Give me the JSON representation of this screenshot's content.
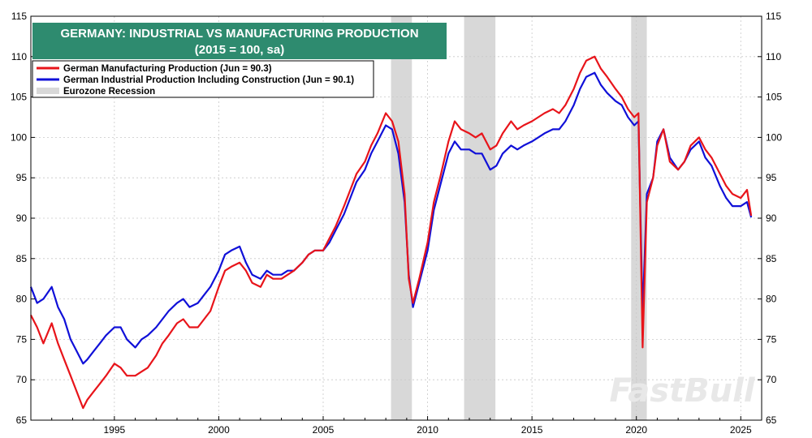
{
  "chart_data": {
    "type": "line",
    "title": "GERMANY: INDUSTRIAL VS MANUFACTURING PRODUCTION",
    "subtitle": "(2015 = 100, sa)",
    "xlim": [
      1991.0,
      2026.0
    ],
    "ylim": [
      65,
      115
    ],
    "x_ticks": [
      1995,
      2000,
      2005,
      2010,
      2015,
      2020,
      2025
    ],
    "y_ticks": [
      65,
      70,
      75,
      80,
      85,
      90,
      95,
      100,
      105,
      110,
      115
    ],
    "grid": true,
    "legend_position": "top-left",
    "recessions": [
      [
        2008.25,
        2009.25
      ],
      [
        2011.75,
        2013.25
      ],
      [
        2019.75,
        2020.5
      ]
    ],
    "recession_label": "Eurozone Recession",
    "recession_color": "#d8d8d8",
    "series": [
      {
        "name": "German Manufacturing Production (Jun = 90.3)",
        "color": "#e8141a",
        "x": [
          1991.0,
          1991.3,
          1991.6,
          1992.0,
          1992.3,
          1992.6,
          1992.9,
          1993.2,
          1993.5,
          1993.7,
          1994.0,
          1994.3,
          1994.6,
          1995.0,
          1995.3,
          1995.6,
          1996.0,
          1996.3,
          1996.6,
          1997.0,
          1997.3,
          1997.6,
          1998.0,
          1998.3,
          1998.6,
          1999.0,
          1999.3,
          1999.6,
          2000.0,
          2000.3,
          2000.6,
          2001.0,
          2001.3,
          2001.6,
          2002.0,
          2002.3,
          2002.6,
          2003.0,
          2003.3,
          2003.6,
          2004.0,
          2004.3,
          2004.6,
          2005.0,
          2005.3,
          2005.6,
          2006.0,
          2006.3,
          2006.6,
          2007.0,
          2007.3,
          2007.6,
          2008.0,
          2008.3,
          2008.6,
          2008.9,
          2009.1,
          2009.3,
          2009.6,
          2010.0,
          2010.3,
          2010.6,
          2011.0,
          2011.3,
          2011.6,
          2012.0,
          2012.3,
          2012.6,
          2013.0,
          2013.3,
          2013.6,
          2014.0,
          2014.3,
          2014.6,
          2015.0,
          2015.3,
          2015.6,
          2016.0,
          2016.3,
          2016.6,
          2017.0,
          2017.3,
          2017.6,
          2018.0,
          2018.3,
          2018.6,
          2019.0,
          2019.3,
          2019.6,
          2019.9,
          2020.1,
          2020.3,
          2020.5,
          2020.8,
          2021.0,
          2021.3,
          2021.6,
          2022.0,
          2022.3,
          2022.6,
          2023.0,
          2023.3,
          2023.6,
          2024.0,
          2024.3,
          2024.6,
          2025.0,
          2025.3,
          2025.5
        ],
        "values": [
          78.0,
          76.5,
          74.5,
          77.0,
          74.5,
          72.5,
          70.5,
          68.5,
          66.5,
          67.5,
          68.5,
          69.5,
          70.5,
          72.0,
          71.5,
          70.5,
          70.5,
          71.0,
          71.5,
          73.0,
          74.5,
          75.5,
          77.0,
          77.5,
          76.5,
          76.5,
          77.5,
          78.5,
          81.5,
          83.5,
          84.0,
          84.5,
          83.5,
          82.0,
          81.5,
          83.0,
          82.5,
          82.5,
          83.0,
          83.5,
          84.5,
          85.5,
          86.0,
          86.0,
          87.5,
          89.0,
          91.5,
          93.5,
          95.5,
          97.0,
          99.0,
          100.5,
          103.0,
          102.0,
          99.5,
          93.0,
          82.5,
          79.5,
          82.5,
          87.0,
          92.0,
          95.0,
          99.5,
          102.0,
          101.0,
          100.5,
          100.0,
          100.5,
          98.5,
          99.0,
          100.5,
          102.0,
          101.0,
          101.5,
          102.0,
          102.5,
          103.0,
          103.5,
          103.0,
          104.0,
          106.0,
          108.0,
          109.5,
          110.0,
          108.5,
          107.5,
          106.0,
          105.0,
          103.5,
          102.5,
          103.0,
          74.0,
          92.0,
          95.0,
          99.0,
          101.0,
          97.0,
          96.0,
          97.0,
          99.0,
          100.0,
          98.5,
          97.5,
          95.5,
          94.0,
          93.0,
          92.5,
          93.5,
          90.3
        ]
      },
      {
        "name": "German Industrial Production Including Construction (Jun = 90.1)",
        "color": "#1010d8",
        "x": [
          1991.0,
          1991.3,
          1991.6,
          1992.0,
          1992.3,
          1992.6,
          1992.9,
          1993.2,
          1993.5,
          1993.7,
          1994.0,
          1994.3,
          1994.6,
          1995.0,
          1995.3,
          1995.6,
          1996.0,
          1996.3,
          1996.6,
          1997.0,
          1997.3,
          1997.6,
          1998.0,
          1998.3,
          1998.6,
          1999.0,
          1999.3,
          1999.6,
          2000.0,
          2000.3,
          2000.6,
          2001.0,
          2001.3,
          2001.6,
          2002.0,
          2002.3,
          2002.6,
          2003.0,
          2003.3,
          2003.6,
          2004.0,
          2004.3,
          2004.6,
          2005.0,
          2005.3,
          2005.6,
          2006.0,
          2006.3,
          2006.6,
          2007.0,
          2007.3,
          2007.6,
          2008.0,
          2008.3,
          2008.6,
          2008.9,
          2009.1,
          2009.3,
          2009.6,
          2010.0,
          2010.3,
          2010.6,
          2011.0,
          2011.3,
          2011.6,
          2012.0,
          2012.3,
          2012.6,
          2013.0,
          2013.3,
          2013.6,
          2014.0,
          2014.3,
          2014.6,
          2015.0,
          2015.3,
          2015.6,
          2016.0,
          2016.3,
          2016.6,
          2017.0,
          2017.3,
          2017.6,
          2018.0,
          2018.3,
          2018.6,
          2019.0,
          2019.3,
          2019.6,
          2019.9,
          2020.1,
          2020.3,
          2020.5,
          2020.8,
          2021.0,
          2021.3,
          2021.6,
          2022.0,
          2022.3,
          2022.6,
          2023.0,
          2023.3,
          2023.6,
          2024.0,
          2024.3,
          2024.6,
          2025.0,
          2025.3,
          2025.5
        ],
        "values": [
          81.5,
          79.5,
          80.0,
          81.5,
          79.0,
          77.5,
          75.0,
          73.5,
          72.0,
          72.5,
          73.5,
          74.5,
          75.5,
          76.5,
          76.5,
          75.0,
          74.0,
          75.0,
          75.5,
          76.5,
          77.5,
          78.5,
          79.5,
          80.0,
          79.0,
          79.5,
          80.5,
          81.5,
          83.5,
          85.5,
          86.0,
          86.5,
          84.5,
          83.0,
          82.5,
          83.5,
          83.0,
          83.0,
          83.5,
          83.5,
          84.5,
          85.5,
          86.0,
          86.0,
          87.0,
          88.5,
          90.5,
          92.5,
          94.5,
          96.0,
          98.0,
          99.5,
          101.5,
          101.0,
          98.0,
          92.0,
          83.0,
          79.0,
          82.0,
          86.0,
          91.0,
          94.0,
          98.0,
          99.5,
          98.5,
          98.5,
          98.0,
          98.0,
          96.0,
          96.5,
          98.0,
          99.0,
          98.5,
          99.0,
          99.5,
          100.0,
          100.5,
          101.0,
          101.0,
          102.0,
          104.0,
          106.0,
          107.5,
          108.0,
          106.5,
          105.5,
          104.5,
          104.0,
          102.5,
          101.5,
          102.0,
          78.0,
          93.0,
          95.0,
          99.5,
          101.0,
          97.5,
          96.0,
          97.0,
          98.5,
          99.5,
          97.5,
          96.5,
          94.0,
          92.5,
          91.5,
          91.5,
          92.0,
          90.1
        ]
      }
    ]
  },
  "watermark": "FastBull"
}
